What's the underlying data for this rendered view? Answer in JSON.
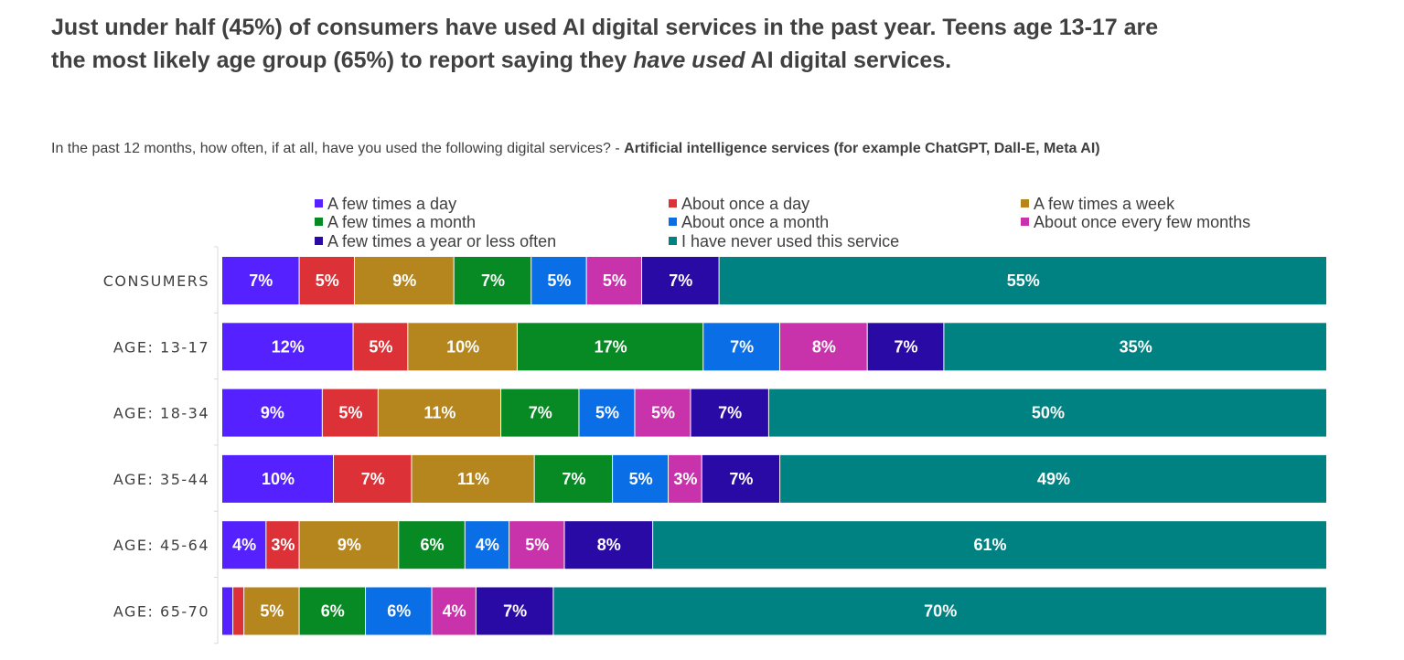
{
  "title": {
    "line1": "Just under half (45%) of consumers have used AI digital services in the past year. Teens age 13-17 are",
    "line2_pre": "the most likely age group (65%) to report saying they ",
    "line2_em": "have used",
    "line2_post": " AI digital services."
  },
  "subtitle": {
    "question": "In the past 12 months, how often, if at all, have you used the following digital services? - ",
    "service": "Artificial intelligence services (for example ChatGPT, Dall-E, Meta AI)"
  },
  "chart_data": {
    "type": "bar",
    "orientation": "horizontal",
    "stacked": true,
    "legend_position": "top",
    "categories": [
      "CONSUMERS",
      "AGE: 13-17",
      "AGE: 18-34",
      "AGE: 35-44",
      "AGE: 45-64",
      "AGE: 65-70"
    ],
    "series": [
      {
        "name": "A few times a day",
        "color": "#5522FF",
        "values": [
          7,
          12,
          9,
          10,
          4,
          1
        ],
        "labels": [
          "7%",
          "12%",
          "9%",
          "10%",
          "4%",
          ""
        ]
      },
      {
        "name": "About once a day",
        "color": "#DC3237",
        "values": [
          5,
          5,
          5,
          7,
          3,
          1
        ],
        "labels": [
          "5%",
          "5%",
          "5%",
          "7%",
          "3%",
          ""
        ]
      },
      {
        "name": "A few times a week",
        "color": "#B5851E",
        "values": [
          9,
          10,
          11,
          11,
          9,
          5
        ],
        "labels": [
          "9%",
          "10%",
          "11%",
          "11%",
          "9%",
          "5%"
        ]
      },
      {
        "name": "A few times a month",
        "color": "#078A23",
        "values": [
          7,
          17,
          7,
          7,
          6,
          6
        ],
        "labels": [
          "7%",
          "17%",
          "7%",
          "7%",
          "6%",
          "6%"
        ]
      },
      {
        "name": "About once a month",
        "color": "#0A6EE6",
        "values": [
          5,
          7,
          5,
          5,
          4,
          6
        ],
        "labels": [
          "5%",
          "7%",
          "5%",
          "5%",
          "4%",
          "6%"
        ]
      },
      {
        "name": "About once every few months",
        "color": "#C832AA",
        "values": [
          5,
          8,
          5,
          3,
          5,
          4
        ],
        "labels": [
          "5%",
          "8%",
          "5%",
          "3%",
          "5%",
          "4%"
        ]
      },
      {
        "name": "A few times a year or less often",
        "color": "#2A0AA5",
        "values": [
          7,
          7,
          7,
          7,
          8,
          7
        ],
        "labels": [
          "7%",
          "7%",
          "7%",
          "7%",
          "8%",
          "7%"
        ]
      },
      {
        "name": "I have never used this service",
        "color": "#008282",
        "values": [
          55,
          35,
          50,
          49,
          61,
          70
        ],
        "labels": [
          "55%",
          "35%",
          "50%",
          "49%",
          "61%",
          "70%"
        ]
      }
    ]
  }
}
